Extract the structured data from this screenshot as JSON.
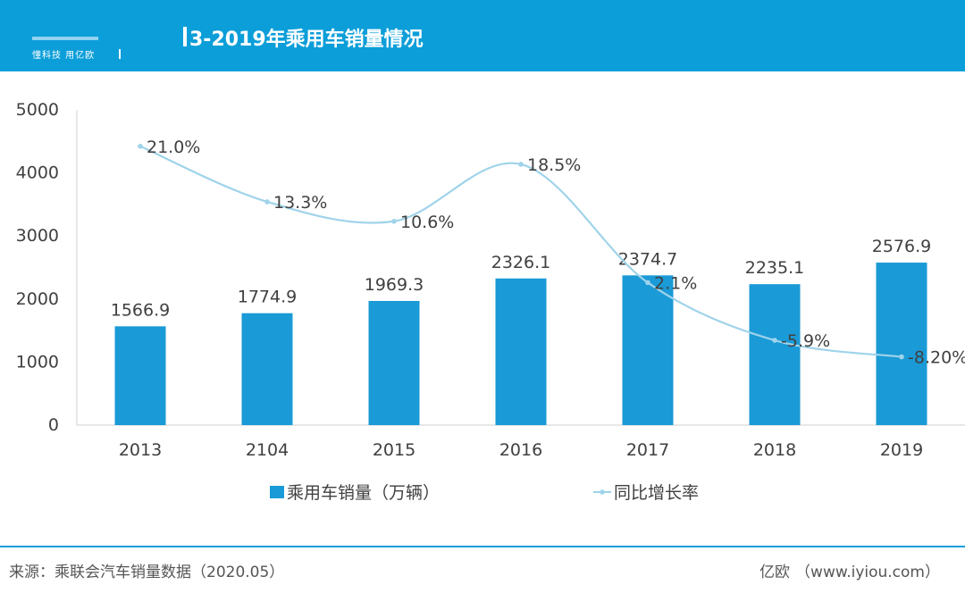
{
  "header": {
    "tagline": "懂科技 用亿欧",
    "title": "3-2019年乘用车销量情况",
    "bg_color": "#0b9ed9"
  },
  "chart_data": {
    "type": "bar",
    "categories": [
      "2013",
      "2104",
      "2015",
      "2016",
      "2017",
      "2018",
      "2019"
    ],
    "y_ticks": [
      "0",
      "1000",
      "2000",
      "3000",
      "4000",
      "5000"
    ],
    "ylim": [
      0,
      5000
    ],
    "grid": false,
    "legend_position": "bottom",
    "series": [
      {
        "name": "乘用车销量（万辆）",
        "kind": "bar",
        "color": "#1a9ad6",
        "values": [
          1566.9,
          1774.9,
          1969.3,
          2326.1,
          2374.7,
          2235.1,
          2576.9
        ],
        "labels": [
          "1566.9",
          "1774.9",
          "1969.3",
          "2326.1",
          "2374.7",
          "2235.1",
          "2576.9"
        ]
      },
      {
        "name": "同比增长率",
        "kind": "line",
        "smooth": true,
        "color": "#9fd3ea",
        "values": [
          21.0,
          13.3,
          10.6,
          18.5,
          2.1,
          -5.9,
          -8.2
        ],
        "labels": [
          "21.0%",
          "13.3%",
          "10.6%",
          "18.5%",
          "2.1%",
          "-5.9%",
          "-8.20%"
        ]
      }
    ]
  },
  "footer": {
    "source": "来源：乘联会汽车销量数据（2020.05）",
    "brand": "亿欧",
    "url": "（www.iyiou.com）"
  }
}
